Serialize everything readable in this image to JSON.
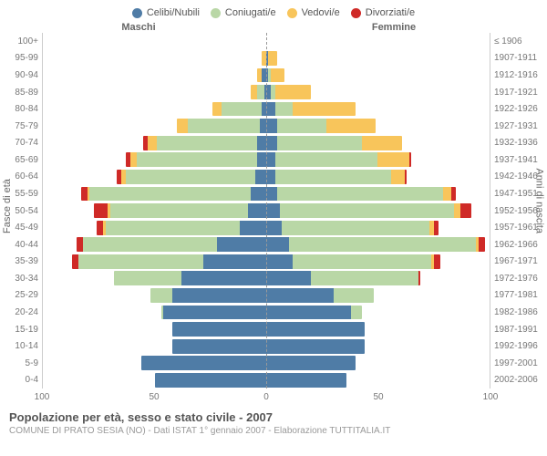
{
  "legend": [
    {
      "label": "Celibi/Nubili",
      "color": "#4f7ca6"
    },
    {
      "label": "Coniugati/e",
      "color": "#b9d7a6"
    },
    {
      "label": "Vedovi/e",
      "color": "#f8c55b"
    },
    {
      "label": "Divorziati/e",
      "color": "#cf2a27"
    }
  ],
  "headers": {
    "m": "Maschi",
    "f": "Femmine"
  },
  "axis": {
    "left_label": "Fasce di età",
    "right_label": "Anni di nascita",
    "x_ticks": [
      100,
      50,
      0,
      50,
      100
    ],
    "x_max": 100
  },
  "caption": {
    "title": "Popolazione per età, sesso e stato civile - 2007",
    "sub": "COMUNE DI PRATO SESIA (NO) - Dati ISTAT 1° gennaio 2007 - Elaborazione TUTTITALIA.IT"
  },
  "rows": [
    {
      "age": "100+",
      "birth": "≤ 1906",
      "m": {
        "c": 0,
        "co": 0,
        "v": 0,
        "d": 0
      },
      "f": {
        "c": 0,
        "co": 0,
        "v": 0,
        "d": 0
      }
    },
    {
      "age": "95-99",
      "birth": "1907-1911",
      "m": {
        "c": 0,
        "co": 0,
        "v": 2,
        "d": 0
      },
      "f": {
        "c": 1,
        "co": 0,
        "v": 4,
        "d": 0
      }
    },
    {
      "age": "90-94",
      "birth": "1912-1916",
      "m": {
        "c": 2,
        "co": 0,
        "v": 2,
        "d": 0
      },
      "f": {
        "c": 1,
        "co": 1,
        "v": 6,
        "d": 0
      }
    },
    {
      "age": "85-89",
      "birth": "1917-1921",
      "m": {
        "c": 1,
        "co": 3,
        "v": 3,
        "d": 0
      },
      "f": {
        "c": 2,
        "co": 2,
        "v": 16,
        "d": 0
      }
    },
    {
      "age": "80-84",
      "birth": "1922-1926",
      "m": {
        "c": 2,
        "co": 18,
        "v": 4,
        "d": 0
      },
      "f": {
        "c": 4,
        "co": 8,
        "v": 28,
        "d": 0
      }
    },
    {
      "age": "75-79",
      "birth": "1927-1931",
      "m": {
        "c": 3,
        "co": 32,
        "v": 5,
        "d": 0
      },
      "f": {
        "c": 5,
        "co": 22,
        "v": 22,
        "d": 0
      }
    },
    {
      "age": "70-74",
      "birth": "1932-1936",
      "m": {
        "c": 4,
        "co": 45,
        "v": 4,
        "d": 2
      },
      "f": {
        "c": 5,
        "co": 38,
        "v": 18,
        "d": 0
      }
    },
    {
      "age": "65-69",
      "birth": "1937-1941",
      "m": {
        "c": 4,
        "co": 54,
        "v": 3,
        "d": 2
      },
      "f": {
        "c": 4,
        "co": 46,
        "v": 14,
        "d": 1
      }
    },
    {
      "age": "60-64",
      "birth": "1942-1946",
      "m": {
        "c": 5,
        "co": 58,
        "v": 2,
        "d": 2
      },
      "f": {
        "c": 4,
        "co": 52,
        "v": 6,
        "d": 1
      }
    },
    {
      "age": "55-59",
      "birth": "1947-1951",
      "m": {
        "c": 7,
        "co": 72,
        "v": 1,
        "d": 3
      },
      "f": {
        "c": 5,
        "co": 74,
        "v": 4,
        "d": 2
      }
    },
    {
      "age": "50-54",
      "birth": "1952-1956",
      "m": {
        "c": 8,
        "co": 62,
        "v": 1,
        "d": 6
      },
      "f": {
        "c": 6,
        "co": 78,
        "v": 3,
        "d": 5
      }
    },
    {
      "age": "45-49",
      "birth": "1957-1961",
      "m": {
        "c": 12,
        "co": 60,
        "v": 1,
        "d": 3
      },
      "f": {
        "c": 7,
        "co": 66,
        "v": 2,
        "d": 2
      }
    },
    {
      "age": "40-44",
      "birth": "1962-1966",
      "m": {
        "c": 22,
        "co": 60,
        "v": 0,
        "d": 3
      },
      "f": {
        "c": 10,
        "co": 84,
        "v": 1,
        "d": 3
      }
    },
    {
      "age": "35-39",
      "birth": "1967-1971",
      "m": {
        "c": 28,
        "co": 56,
        "v": 0,
        "d": 3
      },
      "f": {
        "c": 12,
        "co": 62,
        "v": 1,
        "d": 3
      }
    },
    {
      "age": "30-34",
      "birth": "1972-1976",
      "m": {
        "c": 38,
        "co": 30,
        "v": 0,
        "d": 0
      },
      "f": {
        "c": 20,
        "co": 48,
        "v": 0,
        "d": 1
      }
    },
    {
      "age": "25-29",
      "birth": "1977-1981",
      "m": {
        "c": 42,
        "co": 10,
        "v": 0,
        "d": 0
      },
      "f": {
        "c": 30,
        "co": 18,
        "v": 0,
        "d": 0
      }
    },
    {
      "age": "20-24",
      "birth": "1982-1986",
      "m": {
        "c": 46,
        "co": 1,
        "v": 0,
        "d": 0
      },
      "f": {
        "c": 38,
        "co": 5,
        "v": 0,
        "d": 0
      }
    },
    {
      "age": "15-19",
      "birth": "1987-1991",
      "m": {
        "c": 42,
        "co": 0,
        "v": 0,
        "d": 0
      },
      "f": {
        "c": 44,
        "co": 0,
        "v": 0,
        "d": 0
      }
    },
    {
      "age": "10-14",
      "birth": "1992-1996",
      "m": {
        "c": 42,
        "co": 0,
        "v": 0,
        "d": 0
      },
      "f": {
        "c": 44,
        "co": 0,
        "v": 0,
        "d": 0
      }
    },
    {
      "age": "5-9",
      "birth": "1997-2001",
      "m": {
        "c": 56,
        "co": 0,
        "v": 0,
        "d": 0
      },
      "f": {
        "c": 40,
        "co": 0,
        "v": 0,
        "d": 0
      }
    },
    {
      "age": "0-4",
      "birth": "2002-2006",
      "m": {
        "c": 50,
        "co": 0,
        "v": 0,
        "d": 0
      },
      "f": {
        "c": 36,
        "co": 0,
        "v": 0,
        "d": 0
      }
    }
  ],
  "colors": {
    "c": "#4f7ca6",
    "co": "#b9d7a6",
    "v": "#f8c55b",
    "d": "#cf2a27"
  }
}
